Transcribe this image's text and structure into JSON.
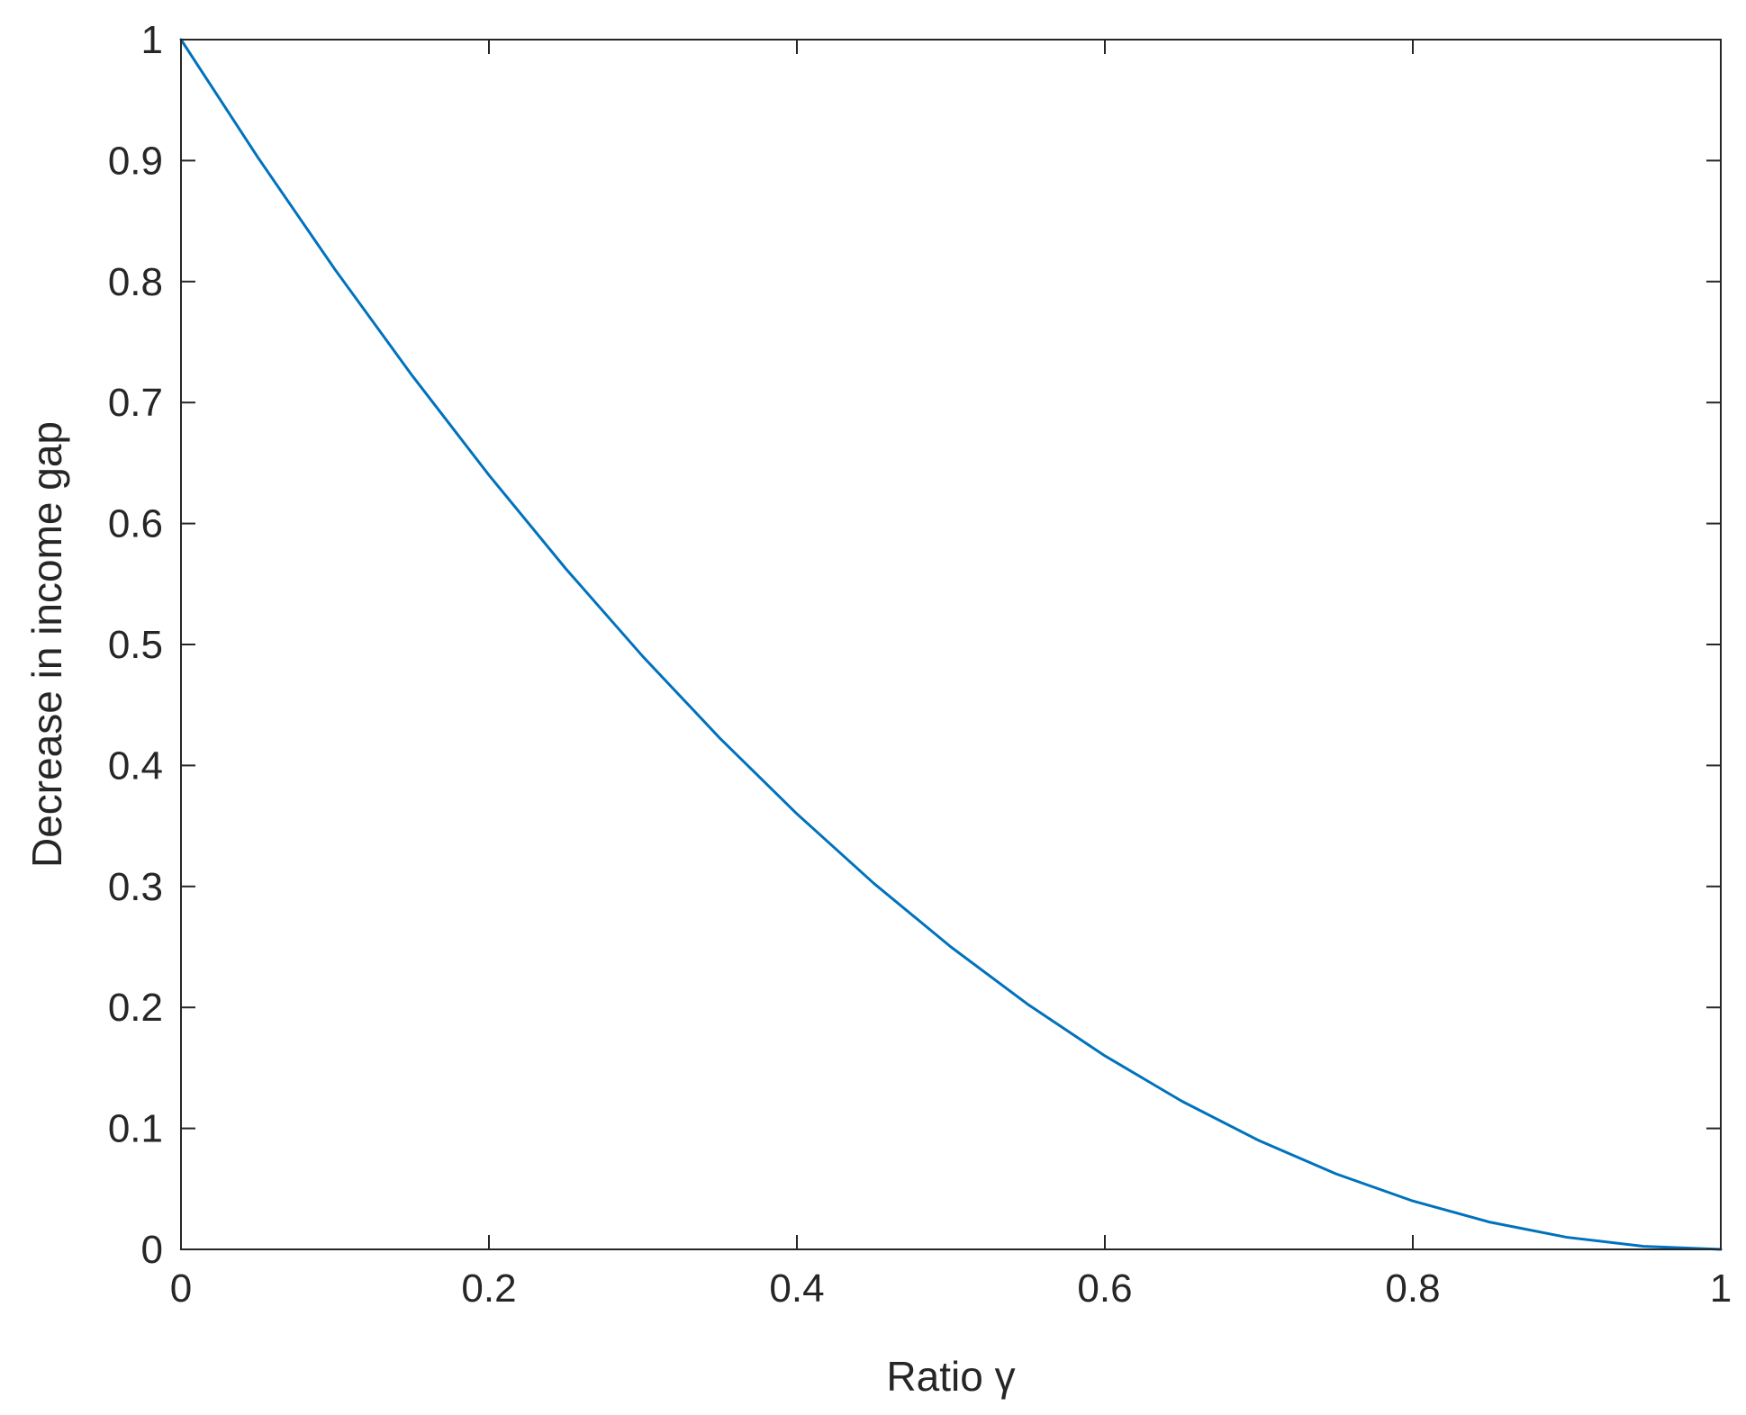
{
  "chart_data": {
    "type": "line",
    "title": "",
    "xlabel": "Ratio γ",
    "ylabel": "Decrease in income gap",
    "xlim": [
      0,
      1
    ],
    "ylim": [
      0,
      1
    ],
    "xticks": [
      0,
      0.2,
      0.4,
      0.6,
      0.8,
      1
    ],
    "yticks": [
      0,
      0.1,
      0.2,
      0.3,
      0.4,
      0.5,
      0.6,
      0.7,
      0.8,
      0.9,
      1
    ],
    "xtick_labels": [
      "0",
      "0.2",
      "0.4",
      "0.6",
      "0.8",
      "1"
    ],
    "ytick_labels": [
      "0",
      "0.1",
      "0.2",
      "0.3",
      "0.4",
      "0.5",
      "0.6",
      "0.7",
      "0.8",
      "0.9",
      "1"
    ],
    "grid": false,
    "series": [
      {
        "color": "#0072BD",
        "x": [
          0,
          0.05,
          0.1,
          0.15,
          0.2,
          0.25,
          0.3,
          0.35,
          0.4,
          0.45,
          0.5,
          0.55,
          0.6,
          0.65,
          0.7,
          0.75,
          0.8,
          0.85,
          0.9,
          0.95,
          1
        ],
        "y": [
          1,
          0.9025,
          0.81,
          0.7225,
          0.64,
          0.5625,
          0.49,
          0.4225,
          0.36,
          0.3025,
          0.25,
          0.2025,
          0.16,
          0.1225,
          0.09,
          0.0625,
          0.04,
          0.0225,
          0.01,
          0.0025,
          0
        ]
      }
    ]
  }
}
